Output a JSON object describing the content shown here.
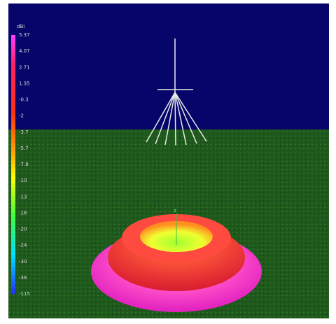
{
  "colorbar": {
    "unit": "dBi",
    "labels": [
      "5.37",
      "4.07",
      "2.71",
      "1.35",
      "-0.3",
      "-2",
      "-3.7",
      "-5.7",
      "-7.8",
      "-10",
      "-13",
      "-16",
      "-20",
      "-24",
      "-30",
      "-38",
      "-115"
    ]
  },
  "axis_label": "z"
}
